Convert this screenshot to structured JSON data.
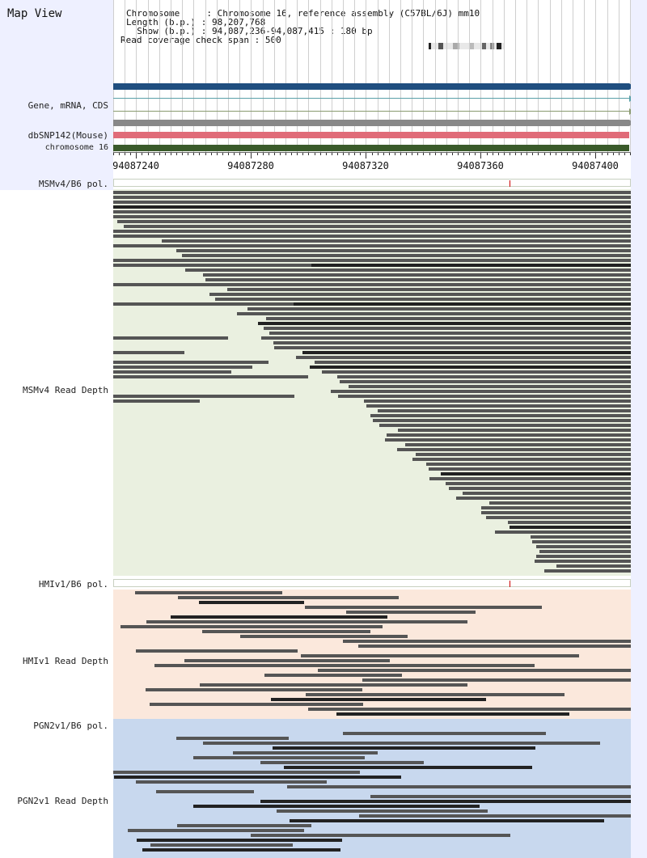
{
  "app": {
    "title": "Map View"
  },
  "info": {
    "chromosome_key": "Chromosome    ",
    "chromosome_val": "Chromosome 16, reference assembly (C57BL/6J) mm10",
    "length_key": "Length (b.p.)",
    "length_val": "98,207,768",
    "show_key": "  Show (b.p.)",
    "show_val": "94,087,236-94,087,415 : 180 bp",
    "span_key": "Read coverage check span",
    "span_val": "500"
  },
  "tracks": {
    "gene": "Gene, mRNA, CDS",
    "snp": "dbSNP142(Mouse)",
    "chrom": "chromosome 16"
  },
  "ruler": {
    "ticks": [
      "94087240",
      "94087280",
      "94087320",
      "94087360",
      "94087400"
    ]
  },
  "panels": {
    "msm_pol": "MSMv4/B6 pol.",
    "msm_depth": "MSMv4 Read Depth",
    "hmi_pol": "HMIv1/B6 pol.",
    "hmi_depth": "HMIv1 Read Depth",
    "pgn_pol": "PGN2v1/B6 pol.",
    "pgn_depth": "PGN2v1 Read Depth"
  },
  "colors": {
    "gene_bar": "#1f4e7f",
    "snp_bar": "#e06b78",
    "chrom_bar": "#3a5a2a",
    "msm_bg": "#eaf0e0",
    "hmi_bg": "#fbe8dc",
    "pgn_bg": "#c8d8ee"
  }
}
